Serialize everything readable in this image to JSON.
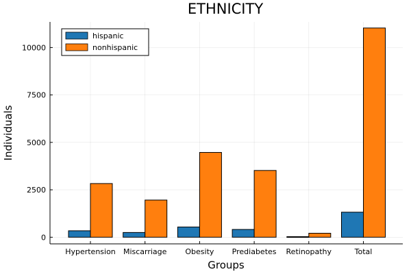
{
  "chart_data": {
    "type": "bar",
    "title": "ETHNICITY",
    "xlabel": "Groups",
    "ylabel": "Individuals",
    "categories": [
      "Hypertension",
      "Miscarriage",
      "Obesity",
      "Prediabetes",
      "Retinopathy",
      "Total"
    ],
    "series": [
      {
        "name": "hispanic",
        "color": "#1f77b4",
        "values": [
          340,
          250,
          540,
          410,
          30,
          1320
        ]
      },
      {
        "name": "nonhispanic",
        "color": "#ff7f0e",
        "values": [
          2830,
          1960,
          4470,
          3520,
          210,
          11030
        ]
      }
    ],
    "yticks": [
      0,
      2500,
      5000,
      7500,
      10000
    ],
    "ytick_labels": [
      "0",
      "2500",
      "5000",
      "7500",
      "10000"
    ],
    "ylim": [
      -350,
      11350
    ],
    "grid": true,
    "legend_position": "top-left"
  }
}
